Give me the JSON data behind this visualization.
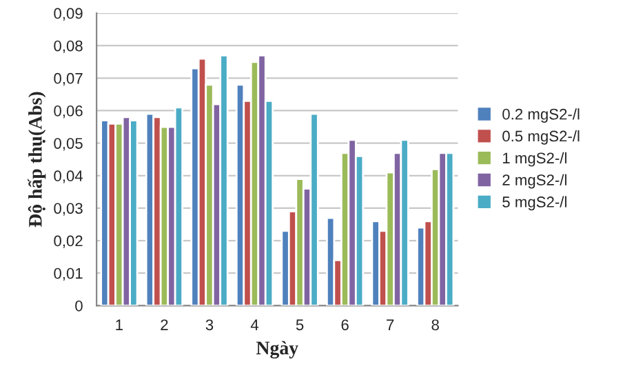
{
  "chart_data": {
    "type": "bar",
    "xlabel": "Ngày",
    "ylabel": "Độ hấp thụ(Abs)",
    "categories": [
      "1",
      "2",
      "3",
      "4",
      "5",
      "6",
      "7",
      "8"
    ],
    "series": [
      {
        "name": "0.2 mgS2-/l",
        "color": "#4f81bd",
        "values": [
          0.057,
          0.059,
          0.073,
          0.068,
          0.023,
          0.027,
          0.026,
          0.024
        ]
      },
      {
        "name": "0.5 mgS2-/l",
        "color": "#c0504d",
        "values": [
          0.056,
          0.058,
          0.076,
          0.063,
          0.029,
          0.014,
          0.023,
          0.026
        ]
      },
      {
        "name": "1 mgS2-/l",
        "color": "#9bbb59",
        "values": [
          0.056,
          0.055,
          0.068,
          0.075,
          0.039,
          0.047,
          0.041,
          0.042
        ]
      },
      {
        "name": "2 mgS2-/l",
        "color": "#8064a2",
        "values": [
          0.058,
          0.055,
          0.062,
          0.077,
          0.036,
          0.051,
          0.047,
          0.047
        ]
      },
      {
        "name": "5 mgS2-/l",
        "color": "#4bacc6",
        "values": [
          0.057,
          0.061,
          0.077,
          0.063,
          0.059,
          0.046,
          0.051,
          0.047
        ]
      }
    ],
    "ylim": [
      0,
      0.09
    ],
    "yticks": [
      0,
      {
        "value": 0.01,
        "label": "0,01"
      },
      {
        "value": 0.02,
        "label": "0,02"
      },
      {
        "value": 0.03,
        "label": "0,03"
      },
      {
        "value": 0.04,
        "label": "0,04"
      },
      {
        "value": 0.05,
        "label": "0,05"
      },
      {
        "value": 0.06,
        "label": "0,06"
      },
      {
        "value": 0.07,
        "label": "0,07"
      },
      {
        "value": 0.08,
        "label": "0,08"
      },
      {
        "value": 0.09,
        "label": "0,09"
      }
    ],
    "grid": "y",
    "legend": "right"
  }
}
